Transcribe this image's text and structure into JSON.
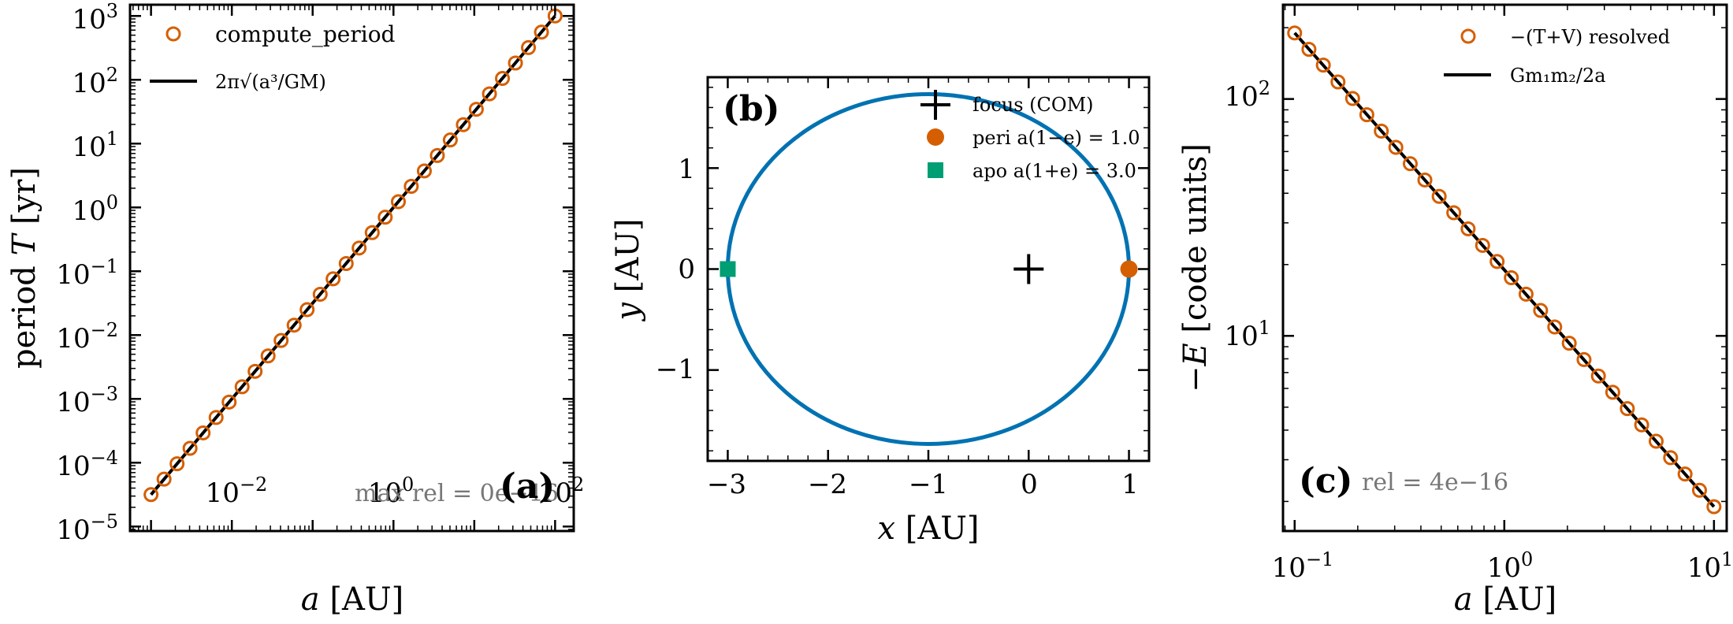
{
  "colors": {
    "marker": "#D55E00",
    "line": "#000000",
    "orbit": "#0072B2",
    "apo": "#009E73",
    "note": "#777777"
  },
  "chart_data": [
    {
      "type": "scatter",
      "panel_tag": "(a)",
      "xlabel": "a [AU]",
      "ylabel": "period T [yr]",
      "xscale": "log",
      "yscale": "log",
      "xlim": [
        0.00055,
        170
      ],
      "ylim": [
        8.5e-06,
        1500
      ],
      "xticks": [
        "10^-2",
        "10^0",
        "10^2"
      ],
      "yticks": [
        "10^-5",
        "10^-4",
        "10^-3",
        "10^-2",
        "10^-1",
        "10^0",
        "10^1",
        "10^2",
        "10^3"
      ],
      "legend_position": "top-left",
      "annotation": "max rel = 0e−16",
      "series": [
        {
          "name": "compute_period",
          "style": "open-circle",
          "x": [
            0.001,
            0.00145,
            0.0021,
            0.00304,
            0.00441,
            0.00639,
            0.00926,
            0.0134,
            0.0194,
            0.0281,
            0.0407,
            0.059,
            0.0854,
            0.124,
            0.179,
            0.26,
            0.376,
            0.546,
            0.791,
            1.15,
            1.66,
            2.41,
            3.49,
            5.05,
            7.32,
            10.6,
            15.4,
            22.3,
            32.3,
            46.8,
            67.8,
            100
          ],
          "y": [
            3.16e-05,
            5.52e-05,
            9.62e-05,
            0.000168,
            0.000293,
            0.000511,
            0.000891,
            0.00155,
            0.0027,
            0.00471,
            0.00822,
            0.0143,
            0.025,
            0.0436,
            0.076,
            0.132,
            0.231,
            0.403,
            0.703,
            1.23,
            2.14,
            3.73,
            6.51,
            11.4,
            19.8,
            34.5,
            60.2,
            105,
            183,
            320,
            558,
            1000
          ]
        },
        {
          "name": "2π√(a³/GM)",
          "style": "line",
          "x": [
            0.001,
            100
          ],
          "y": [
            3.16e-05,
            1000
          ]
        }
      ]
    },
    {
      "type": "line",
      "panel_tag": "(b)",
      "xlabel": "x [AU]",
      "ylabel": "y [AU]",
      "xlim": [
        -3.2,
        1.2
      ],
      "ylim": [
        -1.9,
        1.9
      ],
      "xticks": [
        "−3",
        "−2",
        "−1",
        "0",
        "1"
      ],
      "yticks": [
        "−1",
        "0",
        "1"
      ],
      "legend_position": "top-right",
      "orbit": {
        "a": 2.0,
        "e": 0.5,
        "center": [
          -1,
          0
        ]
      },
      "points": [
        {
          "name": "focus (COM)",
          "style": "plus",
          "x": 0,
          "y": 0
        },
        {
          "name": "peri a(1−e) = 1.0",
          "style": "filled-circle",
          "x": 1.0,
          "y": 0
        },
        {
          "name": "apo a(1+e) = 3.0",
          "style": "filled-square",
          "x": -3.0,
          "y": 0
        }
      ]
    },
    {
      "type": "scatter",
      "panel_tag": "(c)",
      "xlabel": "a [AU]",
      "ylabel": "−E [code units]",
      "xscale": "log",
      "yscale": "log",
      "xlim": [
        0.088,
        11.5
      ],
      "ylim": [
        1.5,
        250
      ],
      "xticks": [
        "10^-1",
        "10^0",
        "10^1"
      ],
      "yticks": [
        "10^1",
        "10^2"
      ],
      "legend_position": "top-right",
      "annotation": "rel = 4e−16",
      "series": [
        {
          "name": "−(T+V) resolved",
          "style": "open-circle",
          "x": [
            0.1,
            0.117,
            0.137,
            0.161,
            0.189,
            0.221,
            0.259,
            0.304,
            0.356,
            0.418,
            0.489,
            0.574,
            0.672,
            0.788,
            0.924,
            1.08,
            1.27,
            1.49,
            1.74,
            2.04,
            2.4,
            2.81,
            3.29,
            3.86,
            4.52,
            5.3,
            6.21,
            7.28,
            8.53,
            10
          ],
          "y": [
            190,
            162,
            139,
            118,
            100.5,
            85.8,
            73.2,
            62.5,
            53.3,
            45.5,
            38.8,
            33.1,
            28.3,
            24.1,
            20.6,
            17.6,
            15.0,
            12.8,
            10.9,
            9.31,
            7.94,
            6.77,
            5.78,
            4.93,
            4.21,
            3.59,
            3.06,
            2.61,
            2.23,
            1.9
          ]
        },
        {
          "name": "Gm₁m₂/2a",
          "style": "line",
          "x": [
            0.1,
            10
          ],
          "y": [
            190,
            1.9
          ]
        }
      ]
    }
  ]
}
